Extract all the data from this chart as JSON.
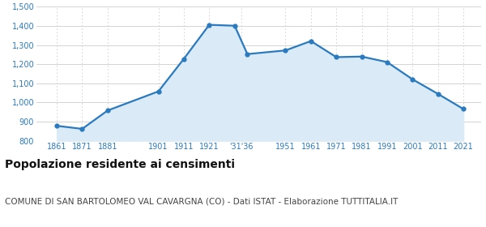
{
  "years": [
    1861,
    1871,
    1881,
    1901,
    1911,
    1921,
    1931,
    1936,
    1951,
    1961,
    1971,
    1981,
    1991,
    2001,
    2011,
    2021
  ],
  "population": [
    878,
    862,
    958,
    1058,
    1228,
    1406,
    1401,
    1253,
    1272,
    1321,
    1237,
    1240,
    1211,
    1121,
    1045,
    966
  ],
  "xtick_labels": [
    "1861",
    "1871",
    "1881",
    "1901",
    "1911",
    "1921",
    "'31'36",
    "1951",
    "1961",
    "1971",
    "1981",
    "1991",
    "2001",
    "2011",
    "2021"
  ],
  "xtick_positions": [
    1861,
    1871,
    1881,
    1901,
    1911,
    1921,
    1933.5,
    1951,
    1961,
    1971,
    1981,
    1991,
    2001,
    2011,
    2021
  ],
  "ytick_labels": [
    "800",
    "900",
    "1,000",
    "1,100",
    "1,200",
    "1,300",
    "1,400",
    "1,500"
  ],
  "ytick_values": [
    800,
    900,
    1000,
    1100,
    1200,
    1300,
    1400,
    1500
  ],
  "ylim": [
    800,
    1500
  ],
  "xlim": [
    1853,
    2028
  ],
  "line_color": "#2a7abf",
  "fill_color": "#daeaf7",
  "marker_color": "#2a7abf",
  "background_color": "#ffffff",
  "grid_color_h": "#cccccc",
  "grid_color_v": "#cccccc",
  "title": "Popolazione residente ai censimenti",
  "subtitle": "COMUNE DI SAN BARTOLOMEO VAL CAVARGNA (CO) - Dati ISTAT - Elaborazione TUTTITALIA.IT",
  "title_fontsize": 10,
  "subtitle_fontsize": 7.5,
  "axis_label_color": "#2a7abf",
  "title_color": "#111111",
  "subtitle_color": "#444444"
}
